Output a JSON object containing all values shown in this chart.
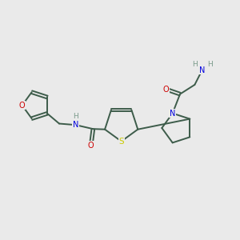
{
  "bg_color": "#eaeaea",
  "bond_color": "#3d5c4a",
  "atom_colors": {
    "O": "#cc0000",
    "N": "#0000dd",
    "S": "#cccc00",
    "H": "#7a9a8a",
    "C": "#3d5c4a"
  },
  "figsize": [
    3.0,
    3.0
  ],
  "dpi": 100
}
